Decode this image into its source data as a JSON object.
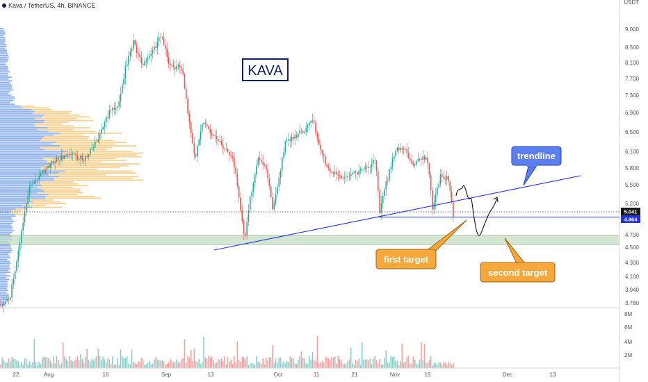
{
  "chart_data": {
    "type": "candlestick",
    "title": "Kava / TetherUS, 4h, BINANCE",
    "annotation_title": "KAVA",
    "price_axis": {
      "unit": "USDT",
      "ticks": [
        "9.000",
        "8.500",
        "8.100",
        "7.700",
        "7.300",
        "6.900",
        "6.500",
        "6.100",
        "5.800",
        "5.500",
        "5.200",
        "4.700",
        "4.500",
        "4.300",
        "4.100",
        "3.940",
        "3.780"
      ],
      "current_price": "5.041",
      "level_price": "4.964"
    },
    "volume_axis": {
      "ticks": [
        "8M",
        "6M",
        "4M",
        "2M"
      ]
    },
    "time_axis": {
      "ticks": [
        "22",
        "Aug",
        "16",
        "Sep",
        "13",
        "Oct",
        "11",
        "21",
        "Nov",
        "15",
        "Dec",
        "13"
      ]
    },
    "callouts": {
      "trendline": "trendline",
      "first_target": "first target",
      "second_target": "second target"
    },
    "colors": {
      "up": "#26a69a",
      "down": "#ef5350",
      "trendline": "#2233dd",
      "callout_blue": "#5b7ff0",
      "callout_orange": "#f7a83a",
      "support_zone": "#c5dcc3",
      "title_box": "#0d1f6b"
    }
  }
}
